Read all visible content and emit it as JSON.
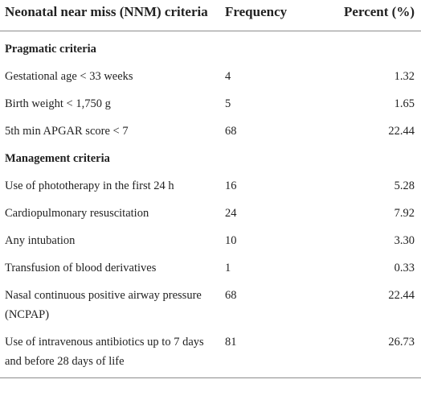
{
  "table": {
    "headers": {
      "criteria": "Neonatal near miss (NNM) criteria",
      "frequency": "Frequency",
      "percent": "Percent (%)"
    },
    "rows": [
      {
        "type": "section",
        "label": "Pragmatic criteria"
      },
      {
        "type": "data",
        "label": "Gestational age < 33 weeks",
        "frequency": "4",
        "percent": "1.32"
      },
      {
        "type": "data",
        "label": "Birth weight < 1,750 g",
        "frequency": "5",
        "percent": "1.65"
      },
      {
        "type": "data",
        "label": "5th min APGAR score < 7",
        "frequency": "68",
        "percent": "22.44"
      },
      {
        "type": "section",
        "label": "Management criteria"
      },
      {
        "type": "data",
        "label": "Use of phototherapy in the first 24 h",
        "frequency": "16",
        "percent": "5.28"
      },
      {
        "type": "data",
        "label": "Cardiopulmonary resuscitation",
        "frequency": "24",
        "percent": "7.92"
      },
      {
        "type": "data",
        "label": "Any intubation",
        "frequency": "10",
        "percent": "3.30"
      },
      {
        "type": "data",
        "label": "Transfusion of blood derivatives",
        "frequency": "1",
        "percent": "0.33"
      },
      {
        "type": "data",
        "label": "Nasal continuous positive airway pressure (NCPAP)",
        "frequency": "68",
        "percent": "22.44"
      },
      {
        "type": "data",
        "label": "Use of intravenous antibiotics up to 7 days and before 28 days of life",
        "frequency": "81",
        "percent": "26.73"
      }
    ]
  }
}
